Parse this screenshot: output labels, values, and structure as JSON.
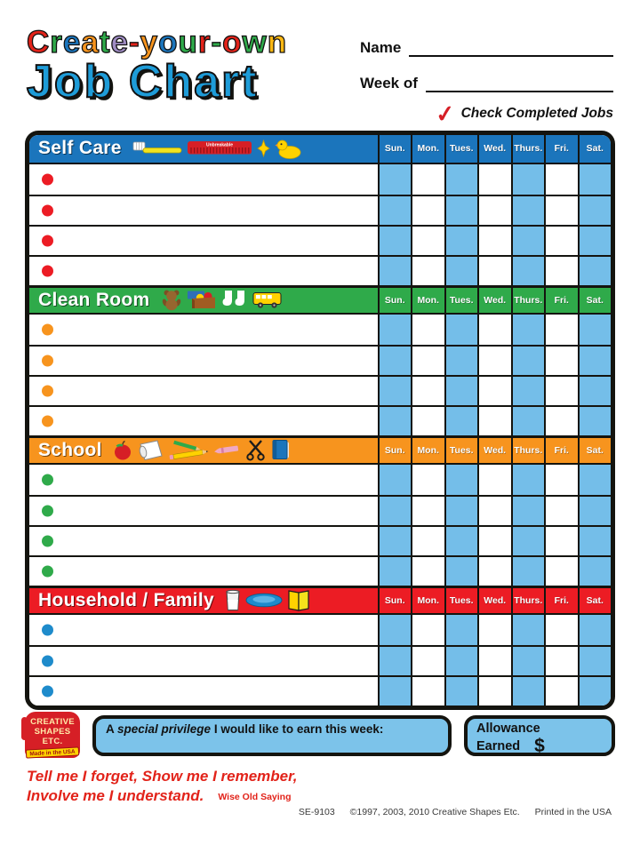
{
  "header": {
    "title_letters": [
      {
        "ch": "C",
        "color": "#e2231a"
      },
      {
        "ch": "r",
        "color": "#2faa4a"
      },
      {
        "ch": "e",
        "color": "#1b75bc"
      },
      {
        "ch": "a",
        "color": "#f7941e"
      },
      {
        "ch": "t",
        "color": "#2faa4a"
      },
      {
        "ch": "e",
        "color": "#9f8cc3"
      },
      {
        "ch": "-",
        "color": "#e2231a"
      },
      {
        "ch": "y",
        "color": "#f7941e"
      },
      {
        "ch": "o",
        "color": "#1b75bc"
      },
      {
        "ch": "u",
        "color": "#2faa4a"
      },
      {
        "ch": "r",
        "color": "#e2231a"
      },
      {
        "ch": "-",
        "color": "#2faa4a"
      },
      {
        "ch": "o",
        "color": "#e2231a"
      },
      {
        "ch": "w",
        "color": "#2faa4a"
      },
      {
        "ch": "n",
        "color": "#fdb813"
      }
    ],
    "title_line2": "Job Chart",
    "name_label": "Name",
    "week_label": "Week of",
    "check_note": "Check Completed Jobs",
    "check_glyph": "✓"
  },
  "days": [
    "Sun.",
    "Mon.",
    "Tues.",
    "Wed.",
    "Thurs.",
    "Fri.",
    "Sat."
  ],
  "comb_label": "Unbreakable",
  "colors": {
    "cell_shade": "#74bee9",
    "grid_line": "#14140f",
    "self_care_blue": "#1b75bc",
    "clean_room_green": "#2faa4a",
    "school_orange": "#f7941e",
    "household_red": "#ec1c24"
  },
  "sections": [
    {
      "title": "Self Care",
      "color": "#1b75bc",
      "dot_color": "#ec1c24",
      "rows": 4,
      "icons": [
        "toothbrush",
        "comb",
        "star",
        "duck"
      ]
    },
    {
      "title": "Clean Room",
      "color": "#2faa4a",
      "dot_color": "#f7941e",
      "rows": 4,
      "icons": [
        "teddy-bear",
        "toy-box",
        "socks",
        "school-bus"
      ]
    },
    {
      "title": "School",
      "color": "#f7941e",
      "dot_color": "#2faa4a",
      "rows": 4,
      "icons": [
        "apple",
        "paper",
        "pencils",
        "crayon",
        "scissors",
        "book-blue"
      ]
    },
    {
      "title": "Household / Family",
      "color": "#ec1c24",
      "dot_color": "#1e8bcb",
      "rows": 3,
      "icons": [
        "milk-glass",
        "plate",
        "book-yellow"
      ]
    }
  ],
  "footer": {
    "privilege_prefix": "A ",
    "privilege_italic": "special privilege",
    "privilege_suffix": " I would like to earn this week:",
    "allowance_line1": "Allowance",
    "allowance_line2": "Earned",
    "allowance_symbol": "$",
    "quote_line1": "Tell me I forget, Show me I remember,",
    "quote_line2": "Involve me I understand.",
    "quote_attribution": "Wise Old Saying",
    "sku": "SE-9103",
    "copyright": "©1997, 2003, 2010 Creative Shapes Etc.",
    "printed": "Printed in the USA",
    "logo_lines": [
      "CREATIVE",
      "SHAPES",
      "ETC."
    ],
    "logo_banner": "Made in the USA"
  }
}
